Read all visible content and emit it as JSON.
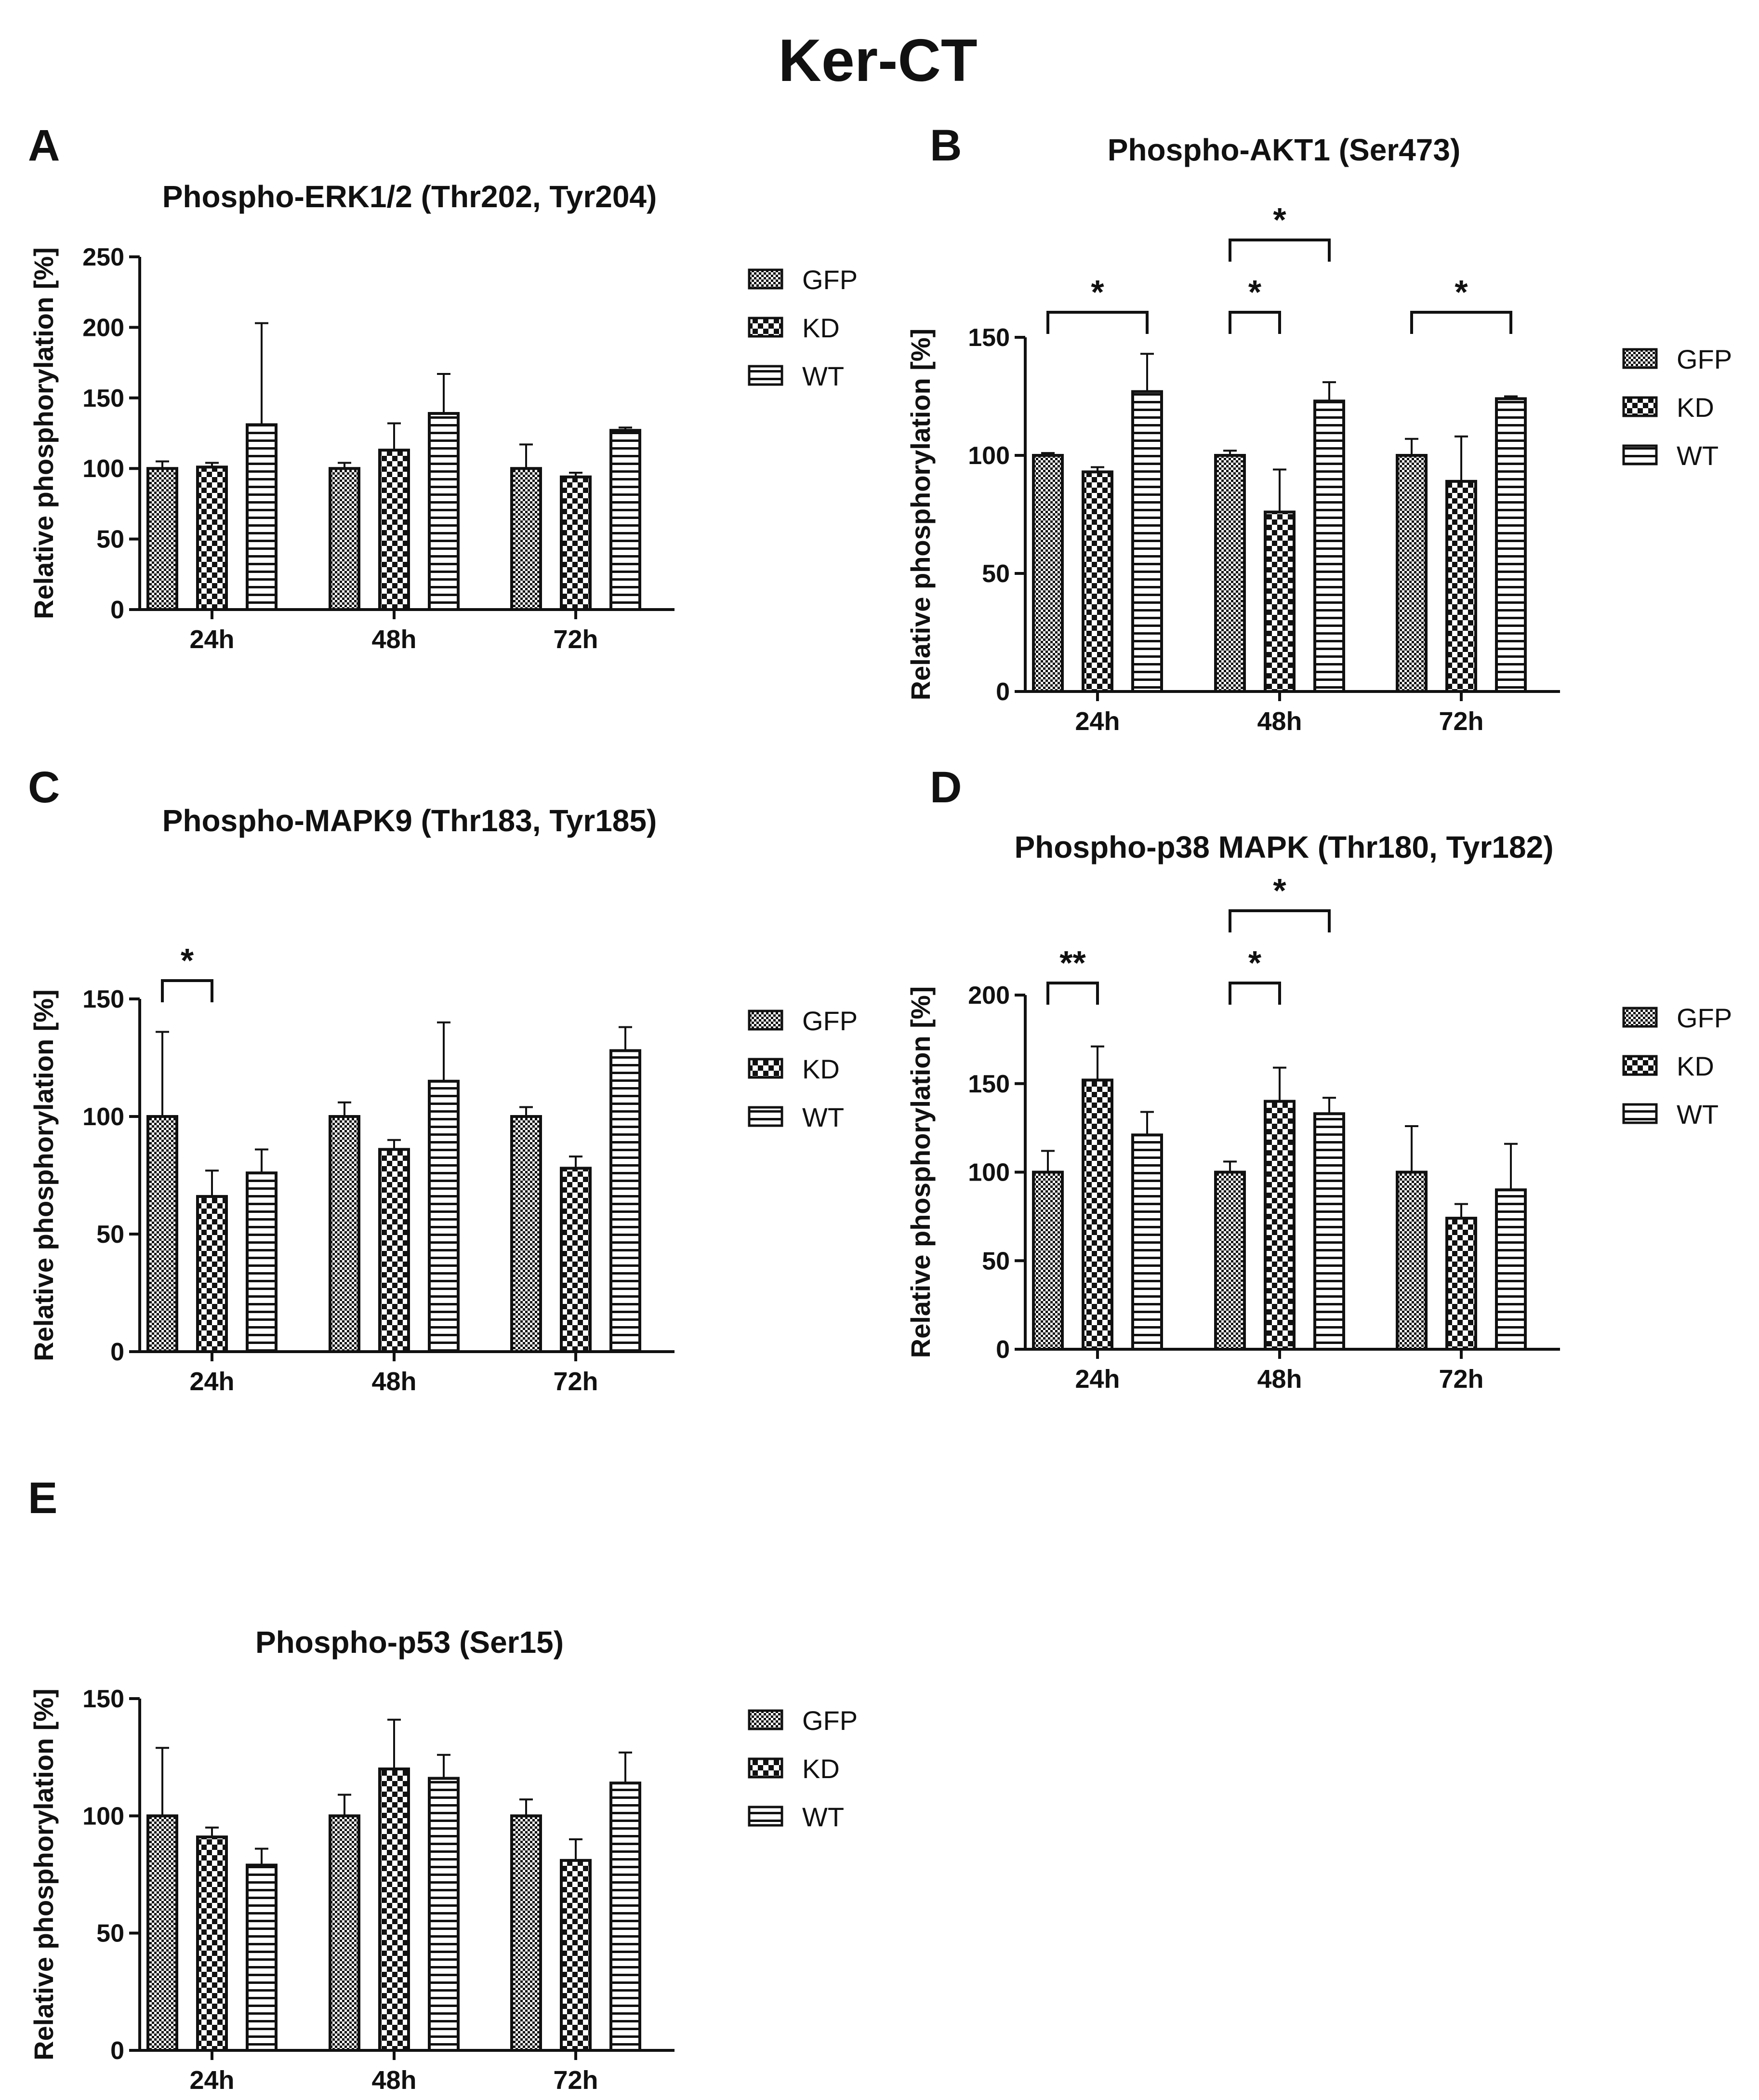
{
  "figure_title": "Ker-CT",
  "colors": {
    "ink": "#111111",
    "background": "#ffffff"
  },
  "chart_data": [
    {
      "panel": "A",
      "type": "bar",
      "title": "Phospho-ERK1/2 (Thr202, Tyr204)",
      "xlabel": "",
      "ylabel": "Relative phosphorylation [%]",
      "ylim": [
        0,
        250
      ],
      "yticks": [
        0,
        50,
        100,
        150,
        200,
        250
      ],
      "categories": [
        "24h",
        "48h",
        "72h"
      ],
      "series": [
        {
          "name": "GFP",
          "pattern": "fine-check",
          "values": [
            100,
            100,
            100
          ],
          "errors": [
            5,
            4,
            17
          ]
        },
        {
          "name": "KD",
          "pattern": "coarse-check",
          "values": [
            101,
            113,
            94
          ],
          "errors": [
            3,
            19,
            3
          ]
        },
        {
          "name": "WT",
          "pattern": "horizontal-stripes",
          "values": [
            131,
            139,
            127
          ],
          "errors": [
            72,
            28,
            2
          ]
        }
      ],
      "significance": [],
      "legend": "right"
    },
    {
      "panel": "B",
      "type": "bar",
      "title": "Phospho-AKT1 (Ser473)",
      "xlabel": "",
      "ylabel": "Relative phosphorylation [%]",
      "ylim": [
        0,
        150
      ],
      "yticks": [
        0,
        50,
        100,
        150
      ],
      "categories": [
        "24h",
        "48h",
        "72h"
      ],
      "series": [
        {
          "name": "GFP",
          "pattern": "fine-check",
          "values": [
            100,
            100,
            100
          ],
          "errors": [
            1,
            2,
            7
          ]
        },
        {
          "name": "KD",
          "pattern": "coarse-check",
          "values": [
            93,
            76,
            89
          ],
          "errors": [
            2,
            18,
            19
          ]
        },
        {
          "name": "WT",
          "pattern": "horizontal-stripes",
          "values": [
            127,
            123,
            124
          ],
          "errors": [
            16,
            8,
            1
          ]
        }
      ],
      "significance": [
        {
          "category": "24h",
          "from": "GFP",
          "to": "WT",
          "label": "*",
          "level": 0
        },
        {
          "category": "48h",
          "from": "GFP",
          "to": "KD",
          "label": "*",
          "level": 0
        },
        {
          "category": "48h",
          "from": "GFP",
          "to": "WT",
          "label": "*",
          "level": 1
        },
        {
          "category": "72h",
          "from": "GFP",
          "to": "WT",
          "label": "*",
          "level": 0
        }
      ],
      "legend": "right"
    },
    {
      "panel": "C",
      "type": "bar",
      "title": "Phospho-MAPK9 (Thr183, Tyr185)",
      "xlabel": "",
      "ylabel": "Relative phosphorylation [%]",
      "ylim": [
        0,
        150
      ],
      "yticks": [
        0,
        50,
        100,
        150
      ],
      "categories": [
        "24h",
        "48h",
        "72h"
      ],
      "series": [
        {
          "name": "GFP",
          "pattern": "fine-check",
          "values": [
            100,
            100,
            100
          ],
          "errors": [
            36,
            6,
            4
          ]
        },
        {
          "name": "KD",
          "pattern": "coarse-check",
          "values": [
            66,
            86,
            78
          ],
          "errors": [
            11,
            4,
            5
          ]
        },
        {
          "name": "WT",
          "pattern": "horizontal-stripes",
          "values": [
            76,
            115,
            128
          ],
          "errors": [
            10,
            25,
            10
          ]
        }
      ],
      "significance": [
        {
          "category": "24h",
          "from": "GFP",
          "to": "KD",
          "label": "*",
          "level": 0
        }
      ],
      "legend": "right"
    },
    {
      "panel": "D",
      "type": "bar",
      "title": "Phospho-p38 MAPK (Thr180, Tyr182)",
      "xlabel": "",
      "ylabel": "Relative phosphorylation [%]",
      "ylim": [
        0,
        200
      ],
      "yticks": [
        0,
        50,
        100,
        150,
        200
      ],
      "categories": [
        "24h",
        "48h",
        "72h"
      ],
      "series": [
        {
          "name": "GFP",
          "pattern": "fine-check",
          "values": [
            100,
            100,
            100
          ],
          "errors": [
            12,
            6,
            26
          ]
        },
        {
          "name": "KD",
          "pattern": "coarse-check",
          "values": [
            152,
            140,
            74
          ],
          "errors": [
            19,
            19,
            8
          ]
        },
        {
          "name": "WT",
          "pattern": "horizontal-stripes",
          "values": [
            121,
            133,
            90
          ],
          "errors": [
            13,
            9,
            26
          ]
        }
      ],
      "significance": [
        {
          "category": "24h",
          "from": "GFP",
          "to": "KD",
          "label": "**",
          "level": 0
        },
        {
          "category": "48h",
          "from": "GFP",
          "to": "KD",
          "label": "*",
          "level": 0
        },
        {
          "category": "48h",
          "from": "GFP",
          "to": "WT",
          "label": "*",
          "level": 1
        }
      ],
      "legend": "right"
    },
    {
      "panel": "E",
      "type": "bar",
      "title": "Phospho-p53 (Ser15)",
      "xlabel": "",
      "ylabel": "Relative phosphorylation [%]",
      "ylim": [
        0,
        150
      ],
      "yticks": [
        0,
        50,
        100,
        150
      ],
      "categories": [
        "24h",
        "48h",
        "72h"
      ],
      "series": [
        {
          "name": "GFP",
          "pattern": "fine-check",
          "values": [
            100,
            100,
            100
          ],
          "errors": [
            29,
            9,
            7
          ]
        },
        {
          "name": "KD",
          "pattern": "coarse-check",
          "values": [
            91,
            120,
            81
          ],
          "errors": [
            4,
            21,
            9
          ]
        },
        {
          "name": "WT",
          "pattern": "horizontal-stripes",
          "values": [
            79,
            116,
            114
          ],
          "errors": [
            7,
            10,
            13
          ]
        }
      ],
      "significance": [],
      "legend": "right"
    }
  ]
}
